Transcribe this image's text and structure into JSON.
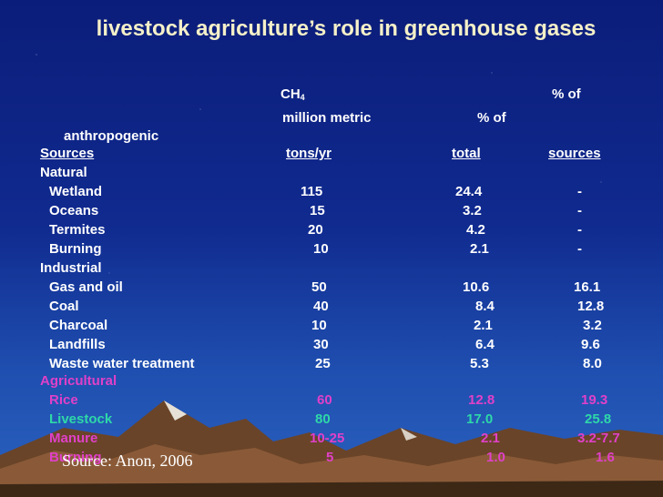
{
  "title": "livestock agriculture’s role in greenhouse gases",
  "header": {
    "ch": "CH",
    "ch_sub": "4",
    "pct_of_top": "% of",
    "million_metric": "million metric",
    "pct_of_mid": "% of",
    "anthropogenic": "anthropogenic",
    "sources_col": "Sources",
    "tons_col": "tons/yr",
    "total_col": "total",
    "sources_right": "sources"
  },
  "sections": {
    "natural": "Natural",
    "industrial": "Industrial",
    "agricultural": "Agricultural"
  },
  "rows": {
    "wetland": {
      "name": "Wetland",
      "tons": "115",
      "total": "24.4",
      "anthro": "-"
    },
    "oceans": {
      "name": "Oceans",
      "tons": "15",
      "total": "3.2",
      "anthro": "-"
    },
    "termites": {
      "name": "Termites",
      "tons": "20",
      "total": "4.2",
      "anthro": "-"
    },
    "burning": {
      "name": "Burning",
      "tons": "10",
      "total": "2.1",
      "anthro": "-"
    },
    "gas_oil": {
      "name": "Gas and oil",
      "tons": "50",
      "total": "10.6",
      "anthro": "16.1"
    },
    "coal": {
      "name": "Coal",
      "tons": "40",
      "total": "8.4",
      "anthro": "12.8"
    },
    "charcoal": {
      "name": "Charcoal",
      "tons": "10",
      "total": "2.1",
      "anthro": "3.2"
    },
    "landfills": {
      "name": "Landfills",
      "tons": "30",
      "total": "6.4",
      "anthro": "9.6"
    },
    "waste": {
      "name": "Waste water treatment",
      "tons": "25",
      "total": "5.3",
      "anthro": "8.0"
    },
    "rice": {
      "name": "Rice",
      "tons": "60",
      "total": "12.8",
      "anthro": "19.3"
    },
    "livestock": {
      "name": "Livestock",
      "tons": "80",
      "total": "17.0",
      "anthro": "25.8"
    },
    "manure": {
      "name": "Manure",
      "tons": "10-25",
      "total": "2.1",
      "anthro": "3.2-7.7"
    },
    "burning2": {
      "name": "Burning",
      "tons": "5",
      "total": "1.0",
      "anthro": "1.6"
    }
  },
  "source": "Source: Anon, 2006",
  "colors": {
    "background_top": "#0b1d7a",
    "title": "#f5f0c8",
    "agricultural": "#e040c8",
    "livestock": "#2ed8a8",
    "mountains": "#8a5a38"
  }
}
